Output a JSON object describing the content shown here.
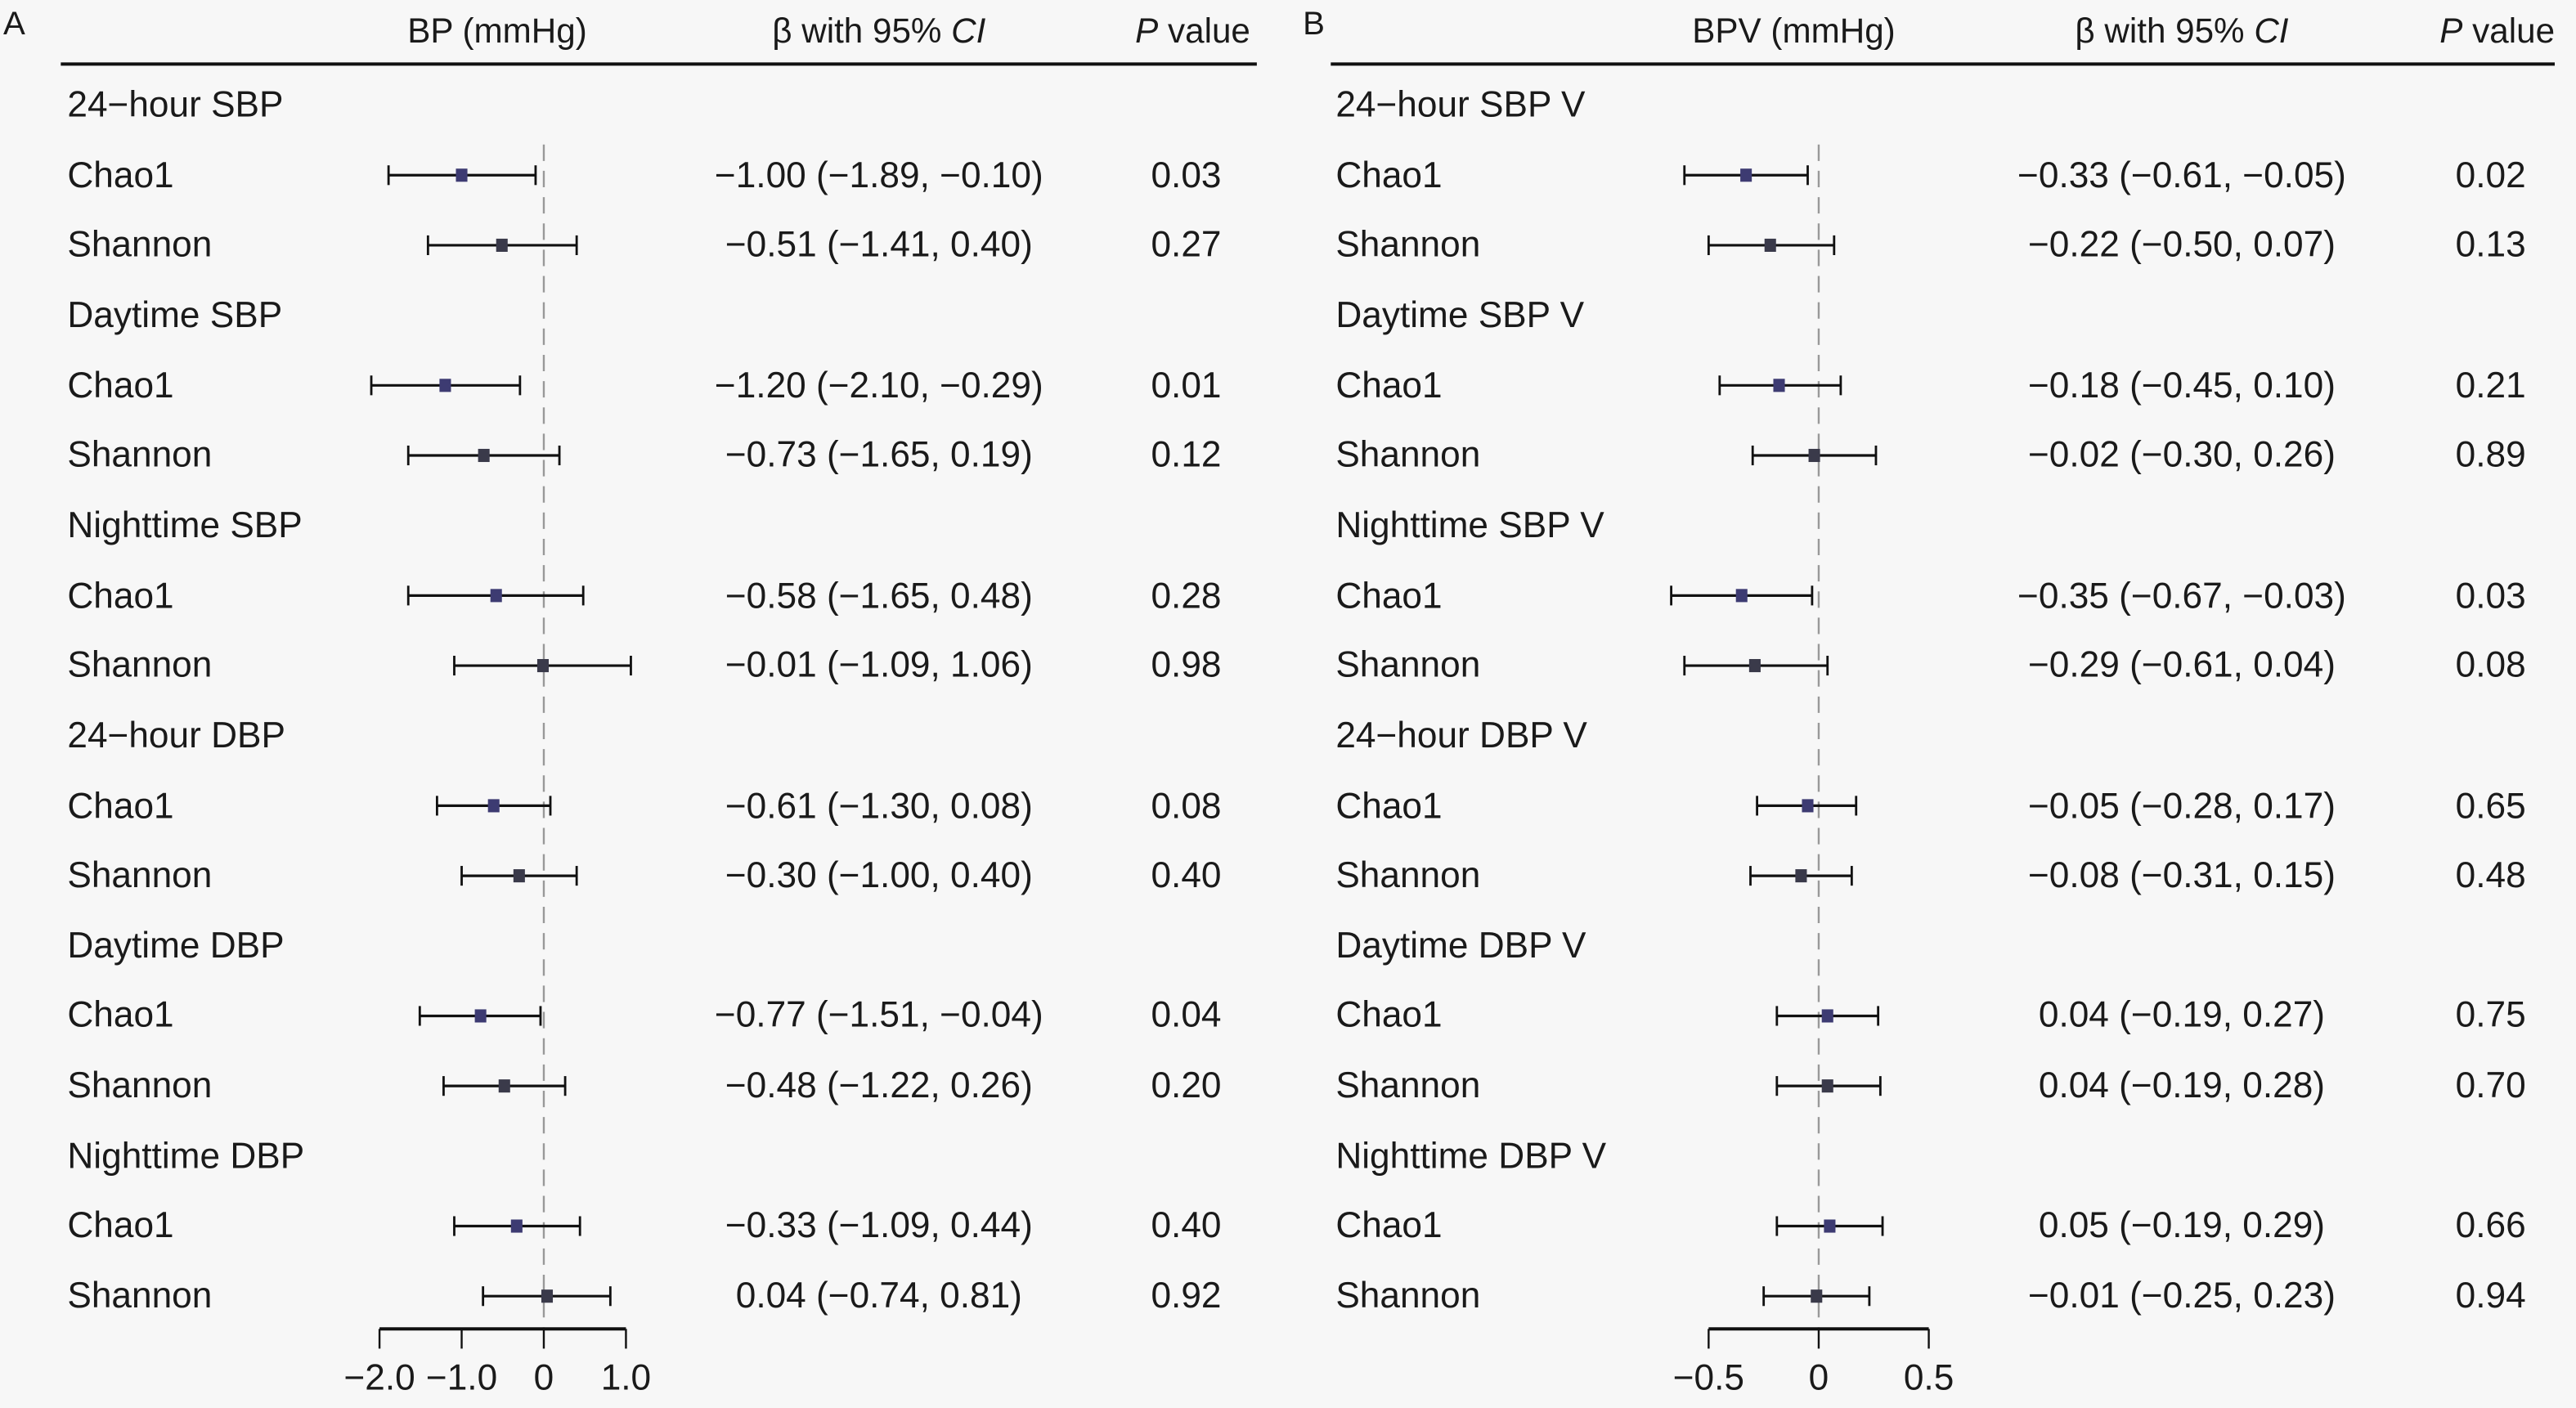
{
  "chart_data": [
    {
      "type": "forest",
      "panel_label": "A",
      "headers": {
        "plot": "BP (mmHg)",
        "beta": "β with 95% CI",
        "beta_prefix": "β with 95% ",
        "beta_italic": "CI",
        "p_italic": "P",
        "p_rest": " value"
      },
      "xlim": [
        -2.0,
        1.0
      ],
      "xticks": [
        -2.0,
        -1.0,
        0,
        1.0
      ],
      "xtick_labels": [
        "−2.0",
        "−1.0",
        "0",
        "1.0"
      ],
      "groups": [
        {
          "title": "24−hour SBP",
          "rows": [
            {
              "name": "Chao1",
              "beta": -1.0,
              "lo": -1.89,
              "hi": -0.1,
              "text": "−1.00 (−1.89, −0.10)",
              "p": "0.03"
            },
            {
              "name": "Shannon",
              "beta": -0.51,
              "lo": -1.41,
              "hi": 0.4,
              "text": "−0.51 (−1.41, 0.40)",
              "p": "0.27"
            }
          ]
        },
        {
          "title": "Daytime SBP",
          "rows": [
            {
              "name": "Chao1",
              "beta": -1.2,
              "lo": -2.1,
              "hi": -0.29,
              "text": "−1.20 (−2.10, −0.29)",
              "p": "0.01"
            },
            {
              "name": "Shannon",
              "beta": -0.73,
              "lo": -1.65,
              "hi": 0.19,
              "text": "−0.73 (−1.65, 0.19)",
              "p": "0.12"
            }
          ]
        },
        {
          "title": "Nighttime SBP",
          "rows": [
            {
              "name": "Chao1",
              "beta": -0.58,
              "lo": -1.65,
              "hi": 0.48,
              "text": "−0.58 (−1.65, 0.48)",
              "p": "0.28"
            },
            {
              "name": "Shannon",
              "beta": -0.01,
              "lo": -1.09,
              "hi": 1.06,
              "text": "−0.01 (−1.09, 1.06)",
              "p": "0.98"
            }
          ]
        },
        {
          "title": "24−hour DBP",
          "rows": [
            {
              "name": "Chao1",
              "beta": -0.61,
              "lo": -1.3,
              "hi": 0.08,
              "text": "−0.61 (−1.30, 0.08)",
              "p": "0.08"
            },
            {
              "name": "Shannon",
              "beta": -0.3,
              "lo": -1.0,
              "hi": 0.4,
              "text": "−0.30 (−1.00, 0.40)",
              "p": "0.40"
            }
          ]
        },
        {
          "title": "Daytime DBP",
          "rows": [
            {
              "name": "Chao1",
              "beta": -0.77,
              "lo": -1.51,
              "hi": -0.04,
              "text": "−0.77 (−1.51, −0.04)",
              "p": "0.04"
            },
            {
              "name": "Shannon",
              "beta": -0.48,
              "lo": -1.22,
              "hi": 0.26,
              "text": "−0.48 (−1.22, 0.26)",
              "p": "0.20"
            }
          ]
        },
        {
          "title": "Nighttime DBP",
          "rows": [
            {
              "name": "Chao1",
              "beta": -0.33,
              "lo": -1.09,
              "hi": 0.44,
              "text": "−0.33 (−1.09, 0.44)",
              "p": "0.40"
            },
            {
              "name": "Shannon",
              "beta": 0.04,
              "lo": -0.74,
              "hi": 0.81,
              "text": "0.04 (−0.74, 0.81)",
              "p": "0.92"
            }
          ]
        }
      ]
    },
    {
      "type": "forest",
      "panel_label": "B",
      "headers": {
        "plot": "BPV (mmHg)",
        "beta": "β with 95% CI",
        "beta_prefix": "β with 95% ",
        "beta_italic": "CI",
        "p_italic": "P",
        "p_rest": " value"
      },
      "xlim": [
        -0.5,
        0.5
      ],
      "xticks": [
        -0.5,
        0,
        0.5
      ],
      "xtick_labels": [
        "−0.5",
        "0",
        "0.5"
      ],
      "groups": [
        {
          "title": "24−hour SBP V",
          "rows": [
            {
              "name": "Chao1",
              "beta": -0.33,
              "lo": -0.61,
              "hi": -0.05,
              "text": "−0.33 (−0.61, −0.05)",
              "p": "0.02"
            },
            {
              "name": "Shannon",
              "beta": -0.22,
              "lo": -0.5,
              "hi": 0.07,
              "text": "−0.22 (−0.50, 0.07)",
              "p": "0.13"
            }
          ]
        },
        {
          "title": "Daytime SBP V",
          "rows": [
            {
              "name": "Chao1",
              "beta": -0.18,
              "lo": -0.45,
              "hi": 0.1,
              "text": "−0.18 (−0.45, 0.10)",
              "p": "0.21"
            },
            {
              "name": "Shannon",
              "beta": -0.02,
              "lo": -0.3,
              "hi": 0.26,
              "text": "−0.02 (−0.30, 0.26)",
              "p": "0.89"
            }
          ]
        },
        {
          "title": "Nighttime SBP V",
          "rows": [
            {
              "name": "Chao1",
              "beta": -0.35,
              "lo": -0.67,
              "hi": -0.03,
              "text": "−0.35 (−0.67, −0.03)",
              "p": "0.03"
            },
            {
              "name": "Shannon",
              "beta": -0.29,
              "lo": -0.61,
              "hi": 0.04,
              "text": "−0.29 (−0.61, 0.04)",
              "p": "0.08"
            }
          ]
        },
        {
          "title": "24−hour DBP V",
          "rows": [
            {
              "name": "Chao1",
              "beta": -0.05,
              "lo": -0.28,
              "hi": 0.17,
              "text": "−0.05 (−0.28, 0.17)",
              "p": "0.65"
            },
            {
              "name": "Shannon",
              "beta": -0.08,
              "lo": -0.31,
              "hi": 0.15,
              "text": "−0.08 (−0.31, 0.15)",
              "p": "0.48"
            }
          ]
        },
        {
          "title": "Daytime DBP V",
          "rows": [
            {
              "name": "Chao1",
              "beta": 0.04,
              "lo": -0.19,
              "hi": 0.27,
              "text": "0.04 (−0.19, 0.27)",
              "p": "0.75"
            },
            {
              "name": "Shannon",
              "beta": 0.04,
              "lo": -0.19,
              "hi": 0.28,
              "text": "0.04 (−0.19, 0.28)",
              "p": "0.70"
            }
          ]
        },
        {
          "title": "Nighttime DBP V",
          "rows": [
            {
              "name": "Chao1",
              "beta": 0.05,
              "lo": -0.19,
              "hi": 0.29,
              "text": "0.05 (−0.19, 0.29)",
              "p": "0.66"
            },
            {
              "name": "Shannon",
              "beta": -0.01,
              "lo": -0.25,
              "hi": 0.23,
              "text": "−0.01 (−0.25, 0.23)",
              "p": "0.94"
            }
          ]
        }
      ]
    }
  ],
  "colors": {
    "chao1_marker": "#3d3b72",
    "shannon_marker": "#3a3a4a",
    "line": "#111111",
    "zero_line": "#999999"
  }
}
